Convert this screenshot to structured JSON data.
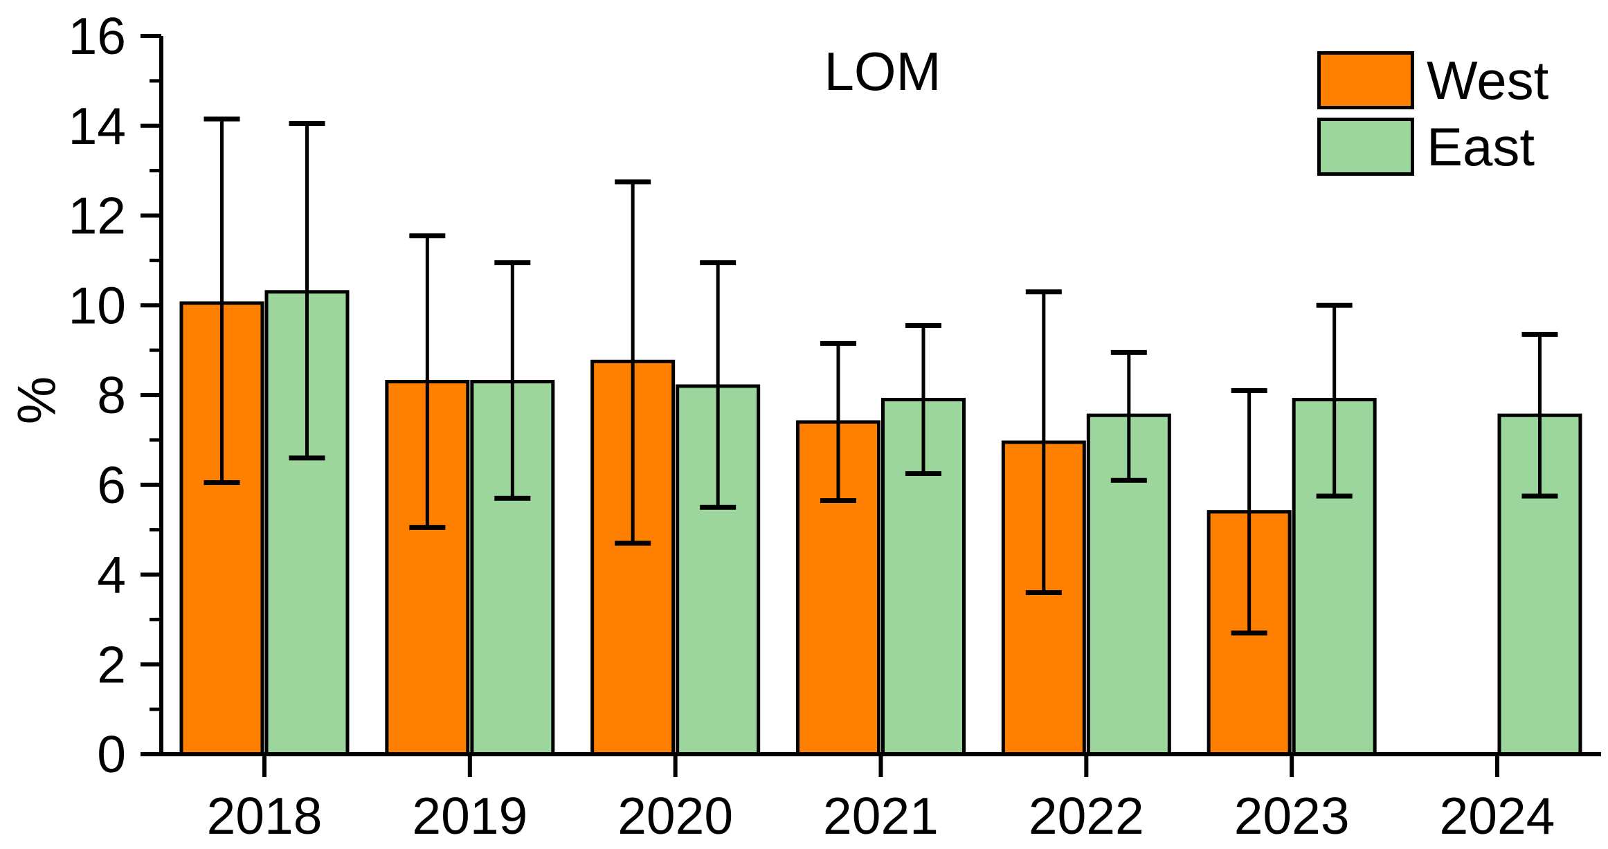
{
  "chart_data": {
    "type": "bar",
    "title": "LOM",
    "ylabel": "%",
    "xlabel": "",
    "categories": [
      "2018",
      "2019",
      "2020",
      "2021",
      "2022",
      "2023",
      "2024"
    ],
    "series": [
      {
        "name": "West",
        "color": "#FF8000",
        "values": [
          10.05,
          8.3,
          8.75,
          7.4,
          6.95,
          5.4,
          null
        ],
        "err_low": [
          6.05,
          5.05,
          4.7,
          5.65,
          3.6,
          2.7,
          null
        ],
        "err_high": [
          14.15,
          11.55,
          12.75,
          9.15,
          10.3,
          8.1,
          null
        ]
      },
      {
        "name": "East",
        "color": "#9CD69C",
        "values": [
          10.3,
          8.3,
          8.2,
          7.9,
          7.55,
          7.9,
          7.55
        ],
        "err_low": [
          6.6,
          5.7,
          5.5,
          6.25,
          6.1,
          5.75,
          5.75
        ],
        "err_high": [
          14.05,
          10.95,
          10.95,
          9.55,
          8.95,
          10.0,
          9.35
        ]
      }
    ],
    "ylim": [
      0,
      16
    ],
    "y_major_step": 2,
    "y_minor_step": 1,
    "y_tick_labels": [
      "0",
      "2",
      "4",
      "6",
      "8",
      "10",
      "12",
      "14",
      "16"
    ],
    "grid": "off",
    "legend_position": "top-right",
    "error_bars": "both-directions",
    "bar_edge_color": "#000000",
    "axis_color": "#000000"
  }
}
